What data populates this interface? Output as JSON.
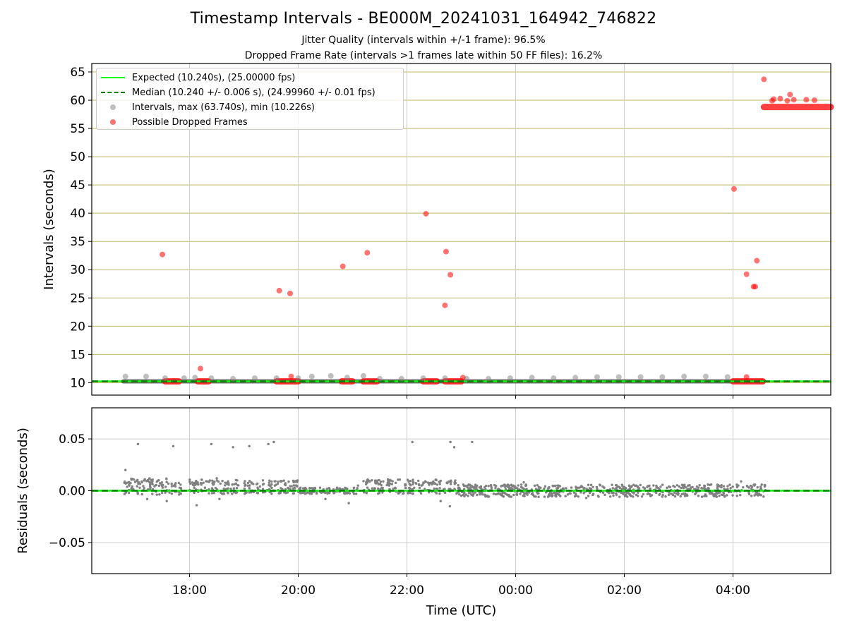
{
  "title": "Timestamp Intervals - BE000M_20241031_164942_746822",
  "subtitle1": "Jitter Quality (intervals within +/-1 frame): 96.5%",
  "subtitle2": "Dropped Frame Rate (intervals >1 frames late within 50 FF files): 16.2%",
  "legend": {
    "expected": "Expected (10.240s), (25.00000 fps)",
    "median": "Median (10.240 +/- 0.006 s), (24.99960 +/- 0.01 fps)",
    "intervals": "Intervals, max (63.740s), min (10.226s)",
    "dropped": "Possible Dropped Frames"
  },
  "colors": {
    "expected": "#00ff00",
    "median": "#008000",
    "intervals": "#808080",
    "dropped": "#ff0000",
    "hgrid_top": "#c8b460",
    "grid": "#cccccc"
  },
  "chart_data": [
    {
      "type": "scatter",
      "panel": "intervals",
      "xlabel": "",
      "ylabel": "Intervals (seconds)",
      "xlim": [
        16.2,
        29.8
      ],
      "ylim": [
        7.8,
        66.5
      ],
      "x_ticks": [
        18,
        20,
        22,
        24,
        26,
        28
      ],
      "x_tick_labels": [
        "18:00",
        "20:00",
        "22:00",
        "00:00",
        "02:00",
        "04:00"
      ],
      "y_ticks": [
        10,
        15,
        20,
        25,
        30,
        35,
        40,
        45,
        50,
        55,
        60,
        65
      ],
      "y_tick_labels": [
        "10",
        "15",
        "20",
        "25",
        "30",
        "35",
        "40",
        "45",
        "50",
        "55",
        "60",
        "65"
      ],
      "expected": 10.24,
      "median": 10.24,
      "series": [
        {
          "name": "Intervals, max (63.740s), min (10.226s)",
          "x": [
            16.82,
            17.2,
            17.55,
            17.9,
            18.1,
            18.4,
            18.8,
            19.2,
            19.6,
            20.0,
            20.25,
            20.6,
            20.9,
            21.2,
            21.5,
            21.9,
            22.3,
            22.7,
            23.1,
            23.5,
            23.9,
            24.3,
            24.7,
            25.1,
            25.5,
            25.9,
            26.3,
            26.7,
            27.1,
            27.5,
            27.9
          ],
          "y": [
            11.1,
            11.1,
            10.8,
            10.8,
            10.9,
            10.8,
            10.7,
            10.8,
            10.8,
            10.8,
            11.1,
            11.2,
            10.9,
            11.2,
            10.7,
            10.7,
            10.8,
            10.8,
            10.7,
            10.7,
            10.8,
            10.9,
            10.8,
            10.9,
            11.0,
            11.0,
            11.0,
            11.0,
            11.1,
            11.1,
            11.0
          ]
        },
        {
          "name": "Possible Dropped Frames",
          "x": [
            17.5,
            18.2,
            19.65,
            19.85,
            19.87,
            20.82,
            21.27,
            22.35,
            22.7,
            22.72,
            22.8,
            23.03,
            28.02,
            28.25,
            28.38,
            28.41,
            28.44,
            28.57,
            28.72,
            28.75,
            28.87,
            29.0,
            29.05,
            29.12,
            29.35,
            29.5,
            28.25
          ],
          "y": [
            32.7,
            12.5,
            26.3,
            25.8,
            11.1,
            30.6,
            33.0,
            39.9,
            23.7,
            33.2,
            29.1,
            10.9,
            44.3,
            29.2,
            27.0,
            27.0,
            31.6,
            63.7,
            59.9,
            60.2,
            60.3,
            59.9,
            61.0,
            60.1,
            60.1,
            60.0,
            11.0
          ]
        }
      ]
    },
    {
      "type": "scatter",
      "panel": "residuals",
      "xlabel": "Time (UTC)",
      "ylabel": "Residuals (seconds)",
      "xlim": [
        16.2,
        29.8
      ],
      "ylim": [
        -0.08,
        0.08
      ],
      "x_ticks": [
        18,
        20,
        22,
        24,
        26,
        28
      ],
      "x_tick_labels": [
        "18:00",
        "20:00",
        "22:00",
        "00:00",
        "02:00",
        "04:00"
      ],
      "y_ticks": [
        0.05,
        0.0,
        -0.05
      ],
      "y_tick_labels": [
        "0.05",
        "0.00",
        "−0.05"
      ],
      "median": 0.0,
      "series": [
        {
          "name": "Residuals",
          "x": [
            17.05,
            17.7,
            18.4,
            18.8,
            19.1,
            19.45,
            19.55,
            22.1,
            22.8,
            22.87,
            23.2,
            16.82,
            17.22,
            17.58,
            18.13,
            18.5,
            18.55,
            19.35,
            20.5,
            20.93,
            21.1,
            22.62,
            22.79,
            23.48,
            24.15,
            25.3,
            26.12,
            27.6,
            28.15
          ],
          "y": [
            0.045,
            0.043,
            0.045,
            0.042,
            0.043,
            0.045,
            0.047,
            0.047,
            0.047,
            0.042,
            0.047,
            0.02,
            -0.008,
            -0.01,
            -0.014,
            0.012,
            -0.008,
            0.01,
            -0.008,
            -0.012,
            0.005,
            -0.01,
            -0.015,
            -0.005,
            0.008,
            -0.007,
            -0.005,
            0.006,
            0.009
          ]
        }
      ]
    }
  ]
}
